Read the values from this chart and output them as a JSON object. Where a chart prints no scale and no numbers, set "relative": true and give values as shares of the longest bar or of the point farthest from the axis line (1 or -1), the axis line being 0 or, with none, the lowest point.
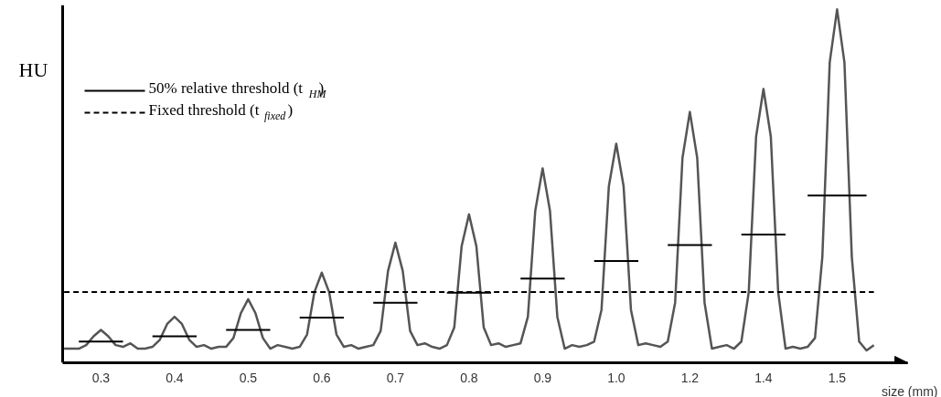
{
  "chart_data": {
    "type": "line",
    "relative": true,
    "ylabel": "HU",
    "xlabel": "size (mm)",
    "categories": [
      null,
      null,
      null,
      null,
      null,
      "0.3",
      null,
      null,
      null,
      null,
      null,
      null,
      null,
      null,
      null,
      "0.4",
      null,
      null,
      null,
      null,
      null,
      null,
      null,
      null,
      null,
      "0.5",
      null,
      null,
      null,
      null,
      null,
      null,
      null,
      null,
      null,
      "0.6",
      null,
      null,
      null,
      null,
      null,
      null,
      null,
      null,
      null,
      "0.7",
      null,
      null,
      null,
      null,
      null,
      null,
      null,
      null,
      null,
      "0.8",
      null,
      null,
      null,
      null,
      null,
      null,
      null,
      null,
      null,
      "0.9",
      null,
      null,
      null,
      null,
      null,
      null,
      null,
      null,
      null,
      "1.0",
      null,
      null,
      null,
      null,
      null,
      null,
      null,
      null,
      null,
      "1.2",
      null,
      null,
      null,
      null,
      null,
      null,
      null,
      null,
      null,
      "1.4",
      null,
      null,
      null,
      null,
      null,
      null,
      null,
      null,
      null,
      "1.5",
      null,
      null,
      null,
      null,
      null
    ],
    "grid": false,
    "legend": "top left",
    "tick_labels": "x",
    "series": [
      {
        "color": "#555555",
        "line_style": "solid",
        "values": [
          0.04,
          0.04,
          0.04,
          0.05,
          0.075,
          0.093,
          0.075,
          0.05,
          0.045,
          0.055,
          0.04,
          0.04,
          0.045,
          0.065,
          0.11,
          0.13,
          0.11,
          0.065,
          0.045,
          0.05,
          0.04,
          0.045,
          0.045,
          0.07,
          0.14,
          0.18,
          0.14,
          0.07,
          0.04,
          0.05,
          0.045,
          0.04,
          0.045,
          0.08,
          0.2,
          0.255,
          0.2,
          0.08,
          0.045,
          0.05,
          0.04,
          0.045,
          0.05,
          0.09,
          0.26,
          0.34,
          0.26,
          0.09,
          0.05,
          0.055,
          0.045,
          0.04,
          0.05,
          0.1,
          0.33,
          0.42,
          0.33,
          0.1,
          0.05,
          0.055,
          0.045,
          0.05,
          0.055,
          0.13,
          0.43,
          0.55,
          0.43,
          0.13,
          0.04,
          0.05,
          0.045,
          0.05,
          0.06,
          0.15,
          0.5,
          0.62,
          0.5,
          0.15,
          0.05,
          0.055,
          0.05,
          0.045,
          0.06,
          0.17,
          0.58,
          0.71,
          0.58,
          0.17,
          0.04,
          0.045,
          0.05,
          0.04,
          0.06,
          0.2,
          0.64,
          0.775,
          0.64,
          0.2,
          0.04,
          0.045,
          0.04,
          0.045,
          0.07,
          0.3,
          0.85,
          1.0,
          0.85,
          0.3,
          0.06,
          0.035,
          0.05
        ]
      },
      {
        "name": "50% relative threshold (t$_{HM}$)",
        "color": "#000000",
        "line_style": "solid",
        "values": [
          null,
          null,
          0.06,
          0.06,
          0.06,
          0.06,
          0.06,
          0.06,
          0.06,
          null,
          null,
          null,
          0.075,
          0.075,
          0.075,
          0.075,
          0.075,
          0.075,
          0.075,
          null,
          null,
          null,
          0.093,
          0.093,
          0.093,
          0.093,
          0.093,
          0.093,
          0.093,
          null,
          null,
          null,
          0.128,
          0.128,
          0.128,
          0.128,
          0.128,
          0.128,
          0.128,
          null,
          null,
          null,
          0.17,
          0.17,
          0.17,
          0.17,
          0.17,
          0.17,
          0.17,
          null,
          null,
          null,
          0.198,
          0.198,
          0.198,
          0.198,
          0.198,
          0.198,
          0.198,
          null,
          null,
          null,
          0.238,
          0.238,
          0.238,
          0.238,
          0.238,
          0.238,
          0.238,
          null,
          null,
          null,
          0.288,
          0.288,
          0.288,
          0.288,
          0.288,
          0.288,
          0.288,
          null,
          null,
          null,
          0.333,
          0.333,
          0.333,
          0.333,
          0.333,
          0.333,
          0.333,
          null,
          null,
          null,
          0.363,
          0.363,
          0.363,
          0.363,
          0.363,
          0.363,
          0.363,
          null,
          null,
          0.473,
          0.473,
          0.473,
          0.473,
          0.473,
          0.473,
          0.473,
          0.473,
          0.473,
          null
        ]
      },
      {
        "name": "Fixed threshold (t$_{fixed}$)",
        "color": "#000000",
        "line_style": "dashed",
        "values": [
          0.2,
          0.2,
          0.2,
          0.2,
          0.2,
          0.2,
          0.2,
          0.2,
          0.2,
          0.2,
          0.2,
          0.2,
          0.2,
          0.2,
          0.2,
          0.2,
          0.2,
          0.2,
          0.2,
          0.2,
          0.2,
          0.2,
          0.2,
          0.2,
          0.2,
          0.2,
          0.2,
          0.2,
          0.2,
          0.2,
          0.2,
          0.2,
          0.2,
          0.2,
          0.2,
          0.2,
          0.2,
          0.2,
          0.2,
          0.2,
          0.2,
          0.2,
          0.2,
          0.2,
          0.2,
          0.2,
          0.2,
          0.2,
          0.2,
          0.2,
          0.2,
          0.2,
          0.2,
          0.2,
          0.2,
          0.2,
          0.2,
          0.2,
          0.2,
          0.2,
          0.2,
          0.2,
          0.2,
          0.2,
          0.2,
          0.2,
          0.2,
          0.2,
          0.2,
          0.2,
          0.2,
          0.2,
          0.2,
          0.2,
          0.2,
          0.2,
          0.2,
          0.2,
          0.2,
          0.2,
          0.2,
          0.2,
          0.2,
          0.2,
          0.2,
          0.2,
          0.2,
          0.2,
          0.2,
          0.2,
          0.2,
          0.2,
          0.2,
          0.2,
          0.2,
          0.2,
          0.2,
          0.2,
          0.2,
          0.2,
          0.2,
          0.2,
          0.2,
          0.2,
          0.2,
          0.2,
          0.2,
          0.2,
          0.2,
          0.2,
          0.2
        ]
      }
    ]
  }
}
